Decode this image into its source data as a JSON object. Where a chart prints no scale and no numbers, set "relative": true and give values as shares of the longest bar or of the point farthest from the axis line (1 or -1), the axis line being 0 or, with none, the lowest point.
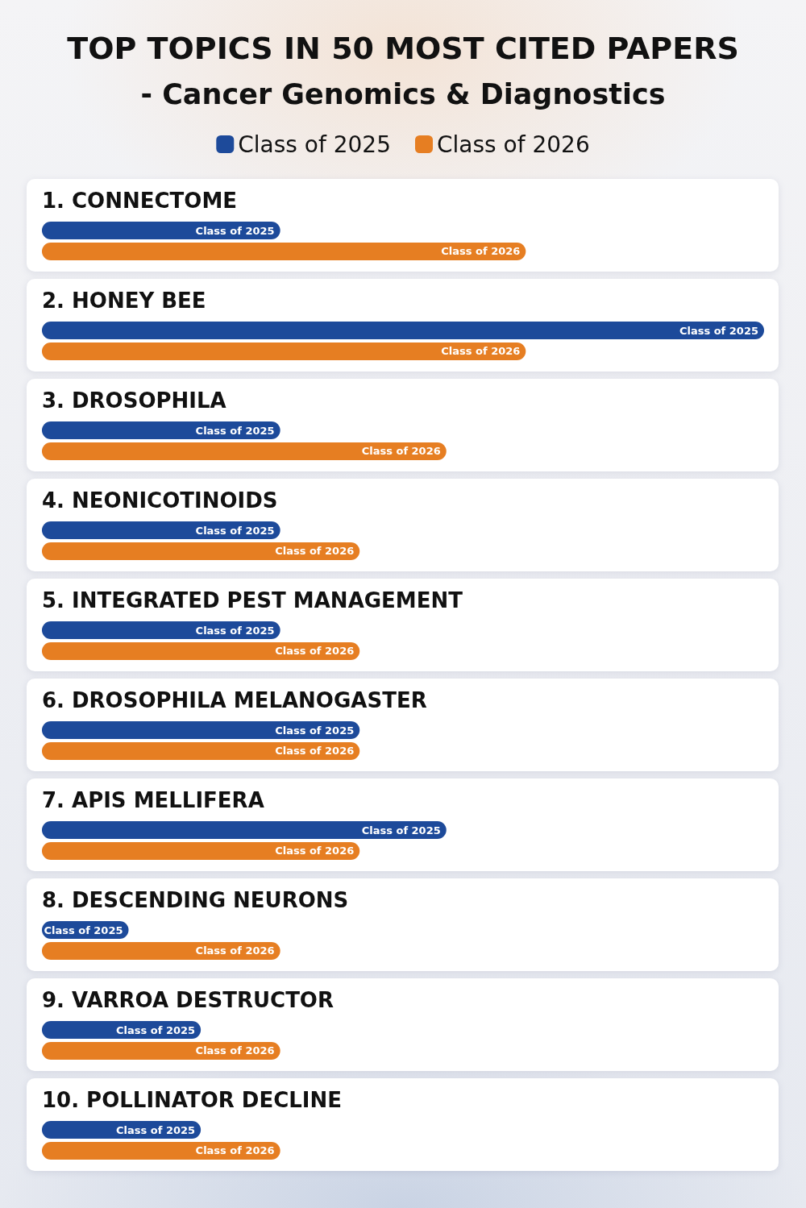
{
  "chart_data": {
    "type": "bar",
    "title": "TOP TOPICS IN 50 MOST CITED PAPERS",
    "subtitle": "- Cancer Genomics & Diagnostics",
    "orientation": "horizontal",
    "relative": true,
    "legend": "top",
    "categories": [
      "1. CONNECTOME",
      "2. HONEY BEE",
      "3. DROSOPHILA",
      "4. NEONICOTINOIDS",
      "5. INTEGRATED PEST MANAGEMENT",
      "6. DROSOPHILA MELANOGASTER",
      "7. APIS MELLIFERA",
      "8. DESCENDING NEURONS",
      "9. VARROA DESTRUCTOR",
      "10. POLLINATOR DECLINE"
    ],
    "series": [
      {
        "name": "Class of 2025",
        "color": "#1d4a9a",
        "values": [
          0.33,
          1,
          0.33,
          0.33,
          0.33,
          0.44,
          0.56,
          0.12,
          0.22,
          0.22
        ]
      },
      {
        "name": "Class of 2026",
        "color": "#e67e22",
        "values": [
          0.67,
          0.67,
          0.56,
          0.44,
          0.44,
          0.44,
          0.44,
          0.33,
          0.33,
          0.33
        ]
      }
    ]
  }
}
